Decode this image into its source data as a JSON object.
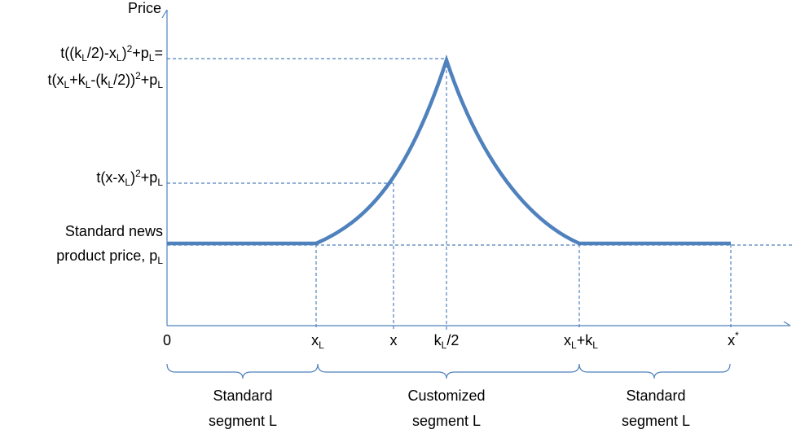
{
  "axes": {
    "y_title": "Price"
  },
  "y_labels": {
    "peak_line1": {
      "a": "t((k",
      "a_sub": "L",
      "b": "/2)-x",
      "b_sub": "L",
      "c": ")",
      "c_sup": "2",
      "d": "+p",
      "d_sub": "L",
      "e": "="
    },
    "peak_line2": {
      "a": "t(x",
      "a_sub": "L",
      "b": "+k",
      "b_sub": "L",
      "c": "-(k",
      "c_sub": "L",
      "d": "/2))",
      "d_sup": "2",
      "e": "+p",
      "e_sub": "L"
    },
    "mid": {
      "a": "t(x-x",
      "a_sub": "L",
      "b": ")",
      "b_sup": "2",
      "c": "+p",
      "c_sub": "L"
    },
    "standard_line1": "Standard news",
    "standard_line2": {
      "a": "product price, p",
      "a_sub": "L"
    }
  },
  "x_labels": {
    "zero": "0",
    "xl": {
      "a": "x",
      "a_sub": "L"
    },
    "x": "x",
    "kl_half": {
      "a": "k",
      "a_sub": "L",
      "b": "/2"
    },
    "xl_kl": {
      "a": "x",
      "a_sub": "L",
      "b": "+k",
      "b_sub": "L"
    },
    "xstar": {
      "a": "x",
      "a_sup": "*"
    }
  },
  "segments": [
    {
      "line1": "Standard",
      "line2": "segment L"
    },
    {
      "line1": "Customized",
      "line2": "segment L"
    },
    {
      "line1": "Standard",
      "line2": "segment L"
    }
  ],
  "colors": {
    "line": "#4f81bd",
    "text": "#000000"
  }
}
